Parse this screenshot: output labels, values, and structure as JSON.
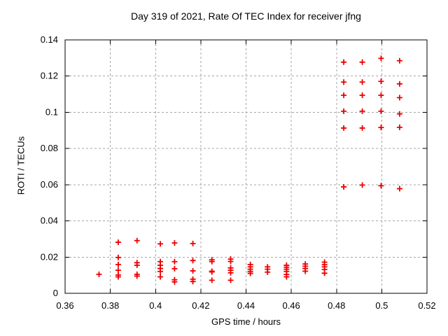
{
  "chart_data": {
    "type": "scatter",
    "title": "Day 319 of 2021, Rate Of TEC Index for receiver jfng",
    "xlabel": "GPS time / hours",
    "ylabel": "ROTI / TECUs",
    "xlim": [
      0.36,
      0.52
    ],
    "ylim": [
      0,
      0.14
    ],
    "xtick_values": [
      0.36,
      0.38,
      0.4,
      0.42,
      0.44,
      0.46,
      0.48,
      0.5,
      0.52
    ],
    "xtick_labels": [
      "0.36",
      "0.38",
      "0.4",
      "0.42",
      "0.44",
      "0.46",
      "0.48",
      "0.5",
      "0.52"
    ],
    "ytick_values": [
      0,
      0.02,
      0.04,
      0.06,
      0.08,
      0.1,
      0.12,
      0.14
    ],
    "ytick_labels": [
      "0",
      "0.02",
      "0.04",
      "0.06",
      "0.08",
      "0.1",
      "0.12",
      "0.14"
    ],
    "grid": true,
    "legend": "none",
    "marker": "plus",
    "colors": {
      "marker": "#ee0000",
      "grid": "#a6a6a6",
      "border": "#000000",
      "text": "#000000",
      "background": "#ffffff"
    },
    "series": [
      {
        "name": "ROTI",
        "clusters": [
          {
            "x": 0.375,
            "ys": [
              0.0105
            ]
          },
          {
            "x": 0.3835,
            "ys": [
              0.0282,
              0.0198,
              0.0159,
              0.0127,
              0.0101,
              0.0091
            ]
          },
          {
            "x": 0.3918,
            "ys": [
              0.0291,
              0.0169,
              0.0155,
              0.0105,
              0.0095
            ]
          },
          {
            "x": 0.4021,
            "ys": [
              0.0273,
              0.0175,
              0.0155,
              0.0137,
              0.0121,
              0.0091
            ]
          },
          {
            "x": 0.4084,
            "ys": [
              0.0278,
              0.0175,
              0.0136,
              0.0075,
              0.0063
            ]
          },
          {
            "x": 0.4165,
            "ys": [
              0.0275,
              0.0181,
              0.0124,
              0.0078,
              0.0065
            ]
          },
          {
            "x": 0.4249,
            "ys": [
              0.0185,
              0.0175,
              0.0122,
              0.0118,
              0.0072
            ]
          },
          {
            "x": 0.4332,
            "ys": [
              0.0189,
              0.0176,
              0.014,
              0.0127,
              0.0113,
              0.0072
            ]
          },
          {
            "x": 0.4419,
            "ys": [
              0.0159,
              0.0146,
              0.0133,
              0.0121,
              0.011
            ]
          },
          {
            "x": 0.4495,
            "ys": [
              0.0146,
              0.0133,
              0.0117
            ]
          },
          {
            "x": 0.4579,
            "ys": [
              0.0155,
              0.0144,
              0.0133,
              0.0121,
              0.0104,
              0.0091
            ]
          },
          {
            "x": 0.4662,
            "ys": [
              0.0162,
              0.015,
              0.0137,
              0.0122
            ]
          },
          {
            "x": 0.4747,
            "ys": [
              0.0172,
              0.0158,
              0.0146,
              0.0132,
              0.0111
            ]
          },
          {
            "x": 0.4832,
            "ys": [
              0.1277,
              0.1167,
              0.1094,
              0.1006,
              0.0913,
              0.0588
            ]
          },
          {
            "x": 0.4914,
            "ys": [
              0.1277,
              0.1167,
              0.1094,
              0.1006,
              0.0913,
              0.0598
            ]
          },
          {
            "x": 0.4997,
            "ys": [
              0.1298,
              0.1171,
              0.1094,
              0.1006,
              0.0916,
              0.0594
            ]
          },
          {
            "x": 0.5079,
            "ys": [
              0.1285,
              0.1157,
              0.1081,
              0.0991,
              0.0917,
              0.0578
            ]
          }
        ]
      }
    ]
  }
}
